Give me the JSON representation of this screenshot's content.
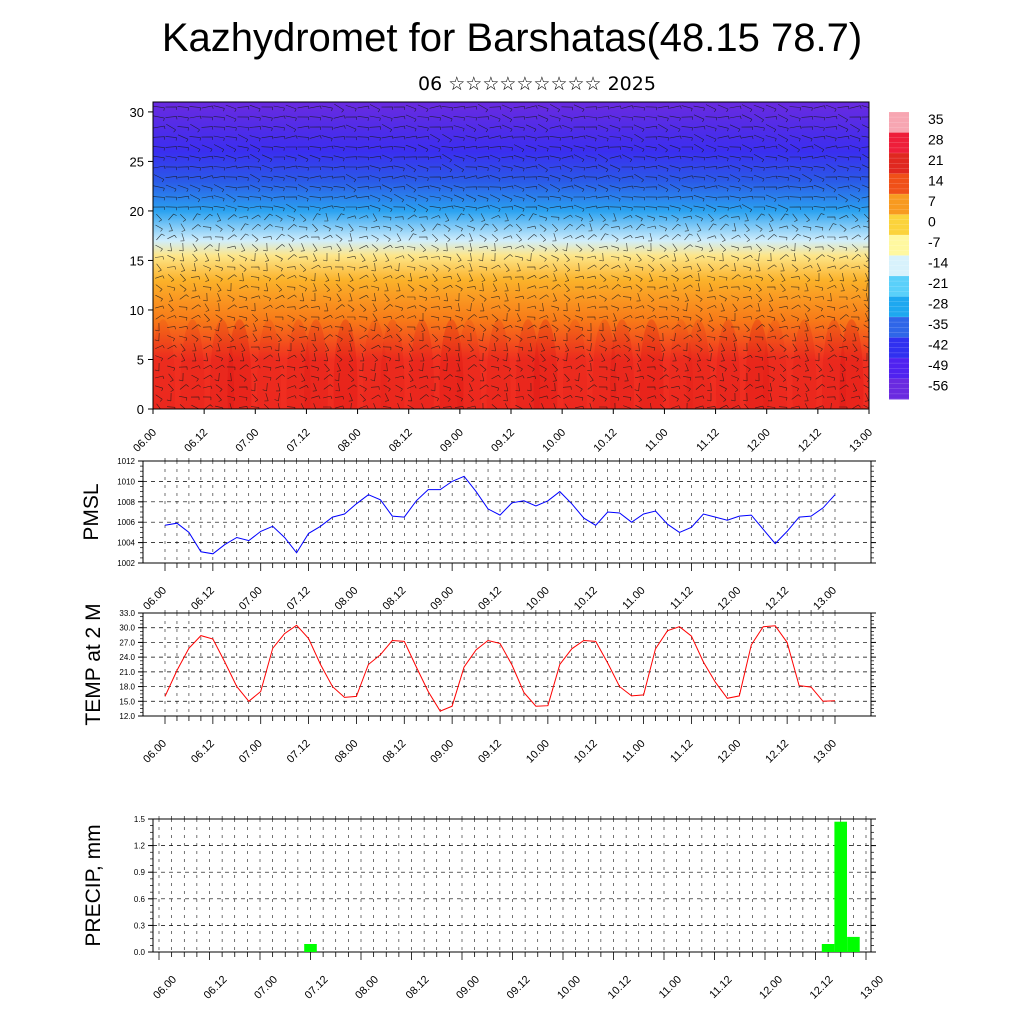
{
  "header": {
    "title": "Kazhydromet for Barshatas(48.15 78.7)",
    "subtitle": "06 ☆☆☆☆☆☆☆☆☆ 2025"
  },
  "colors": {
    "pmsl_line": "#0000ff",
    "temp_line": "#ff0000",
    "precip_bar": "#00ff00"
  },
  "chart_data": [
    {
      "type": "heatmap",
      "title": "",
      "x_ticks": [
        "06.00",
        "06.12",
        "07.00",
        "07.12",
        "08.00",
        "08.12",
        "09.00",
        "09.12",
        "10.00",
        "10.12",
        "11.00",
        "11.12",
        "12.00",
        "12.12",
        "13.00"
      ],
      "ylim": [
        0,
        31
      ],
      "y_ticks": [
        "0",
        "5",
        "10",
        "15",
        "20",
        "25",
        "30"
      ],
      "colorbar_labels": [
        "35",
        "28",
        "21",
        "14",
        "7",
        "0",
        "-7",
        "-14",
        "-21",
        "-28",
        "-35",
        "-42",
        "-49",
        "-56"
      ],
      "colorbar_colors": [
        "#f7a6b2",
        "#ee1e3a",
        "#e02820",
        "#f05018",
        "#f89a20",
        "#fbd33c",
        "#fff8a0",
        "#d8f2fc",
        "#5ad0fa",
        "#1ea8f0",
        "#2f66e8",
        "#3030f0",
        "#5022f0",
        "#6a2ae0"
      ],
      "colorscale": [
        {
          "alt": 0,
          "color": "#f02c20"
        },
        {
          "alt": 5,
          "color": "#f03020"
        },
        {
          "alt": 9,
          "color": "#f87a18"
        },
        {
          "alt": 13,
          "color": "#fbb22a"
        },
        {
          "alt": 15.5,
          "color": "#fde68a"
        },
        {
          "alt": 17,
          "color": "#d0eefc"
        },
        {
          "alt": 20,
          "color": "#2aa2f0"
        },
        {
          "alt": 23,
          "color": "#2a5ae8"
        },
        {
          "alt": 26,
          "color": "#3a2ef0"
        },
        {
          "alt": 31,
          "color": "#6a2ae0"
        }
      ],
      "wind_barbs": true
    },
    {
      "type": "line",
      "ylabel": "PMSL",
      "x_ticks": [
        "06.00",
        "06.12",
        "07.00",
        "07.12",
        "08.00",
        "08.12",
        "09.00",
        "09.12",
        "10.00",
        "10.12",
        "11.00",
        "11.12",
        "12.00",
        "12.12",
        "13.00"
      ],
      "ylim": [
        1002,
        1012
      ],
      "y_ticks": [
        "1002",
        "1004",
        "1006",
        "1008",
        "1010",
        "1012"
      ],
      "grid": true,
      "series": [
        {
          "values": [
            1005.7,
            1005.9,
            1005.0,
            1003.1,
            1002.9,
            1003.8,
            1004.5,
            1004.2,
            1005.1,
            1005.6,
            1004.5,
            1003.0,
            1004.9,
            1005.6,
            1006.5,
            1006.8,
            1007.8,
            1008.7,
            1008.2,
            1006.6,
            1006.5,
            1008.1,
            1009.2,
            1009.2,
            1010.0,
            1010.5,
            1009.0,
            1007.3,
            1006.7,
            1007.9,
            1008.1,
            1007.6,
            1008.1,
            1009.0,
            1007.8,
            1006.4,
            1005.7,
            1007.0,
            1006.9,
            1006.0,
            1006.8,
            1007.1,
            1005.8,
            1005.0,
            1005.5,
            1006.8,
            1006.5,
            1006.2,
            1006.6,
            1006.7,
            1005.3,
            1003.9,
            1005.1,
            1006.5,
            1006.6,
            1007.4,
            1008.7
          ]
        }
      ]
    },
    {
      "type": "line",
      "ylabel": "TEMP at 2 M",
      "x_ticks": [
        "06.00",
        "06.12",
        "07.00",
        "07.12",
        "08.00",
        "08.12",
        "09.00",
        "09.12",
        "10.00",
        "10.12",
        "11.00",
        "11.12",
        "12.00",
        "12.12",
        "13.00"
      ],
      "ylim": [
        12,
        33
      ],
      "y_ticks": [
        "12.0",
        "15.0",
        "18.0",
        "21.0",
        "24.0",
        "27.0",
        "30.0",
        "33.0"
      ],
      "grid": true,
      "series": [
        {
          "values": [
            16.0,
            21.3,
            25.8,
            28.4,
            27.7,
            23.0,
            18.0,
            15.0,
            17.0,
            25.8,
            28.8,
            30.5,
            27.8,
            22.5,
            18.0,
            15.8,
            16.0,
            22.5,
            24.5,
            27.4,
            27.2,
            22.0,
            17.0,
            13.0,
            14.0,
            22.0,
            25.5,
            27.4,
            26.8,
            22.4,
            16.8,
            14.0,
            14.1,
            22.5,
            25.7,
            27.4,
            27.2,
            22.8,
            18.0,
            16.1,
            16.3,
            25.7,
            29.4,
            30.2,
            28.3,
            23.0,
            18.9,
            15.6,
            16.1,
            26.5,
            30.2,
            30.4,
            27.0,
            18.2,
            17.9,
            15.0,
            15.1
          ]
        }
      ]
    },
    {
      "type": "bar",
      "ylabel": "PRECIP, mm",
      "x_ticks": [
        "06.00",
        "06.12",
        "07.00",
        "07.12",
        "08.00",
        "08.12",
        "09.00",
        "09.12",
        "10.00",
        "10.12",
        "11.00",
        "11.12",
        "12.00",
        "12.12",
        "13.00"
      ],
      "ylim": [
        0,
        1.5
      ],
      "y_ticks": [
        "0.0",
        "0.3",
        "0.6",
        "0.9",
        "1.2",
        "1.5"
      ],
      "grid": true,
      "series": [
        {
          "values": [
            0,
            0,
            0,
            0,
            0,
            0,
            0,
            0,
            0,
            0,
            0,
            0,
            0.09,
            0,
            0,
            0,
            0,
            0,
            0,
            0,
            0,
            0,
            0,
            0,
            0,
            0,
            0,
            0,
            0,
            0,
            0,
            0,
            0,
            0,
            0,
            0,
            0,
            0,
            0,
            0,
            0,
            0,
            0,
            0,
            0,
            0,
            0,
            0,
            0,
            0,
            0,
            0,
            0,
            0.09,
            1.47,
            0.17,
            0
          ]
        }
      ]
    }
  ]
}
